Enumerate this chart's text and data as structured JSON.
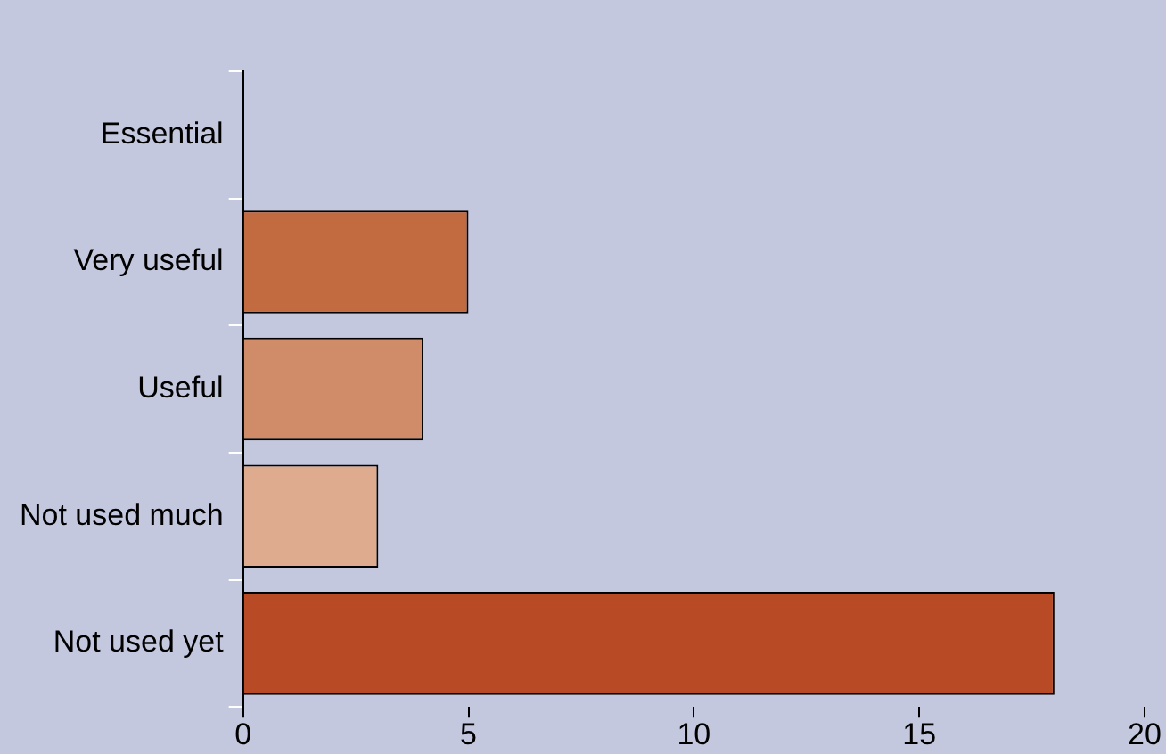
{
  "chart_data": {
    "type": "bar",
    "orientation": "horizontal",
    "categories": [
      "Essential",
      "Very useful",
      "Useful",
      "Not used much",
      "Not used yet"
    ],
    "values": [
      0,
      5,
      4,
      3,
      18
    ],
    "colors": [
      "#ffffff",
      "#c26a40",
      "#d08c69",
      "#dfab8e",
      "#b84b25"
    ],
    "xlim": [
      0,
      20
    ],
    "xticks": [
      0,
      5,
      10,
      15,
      20
    ],
    "grid": false,
    "legend": false
  }
}
